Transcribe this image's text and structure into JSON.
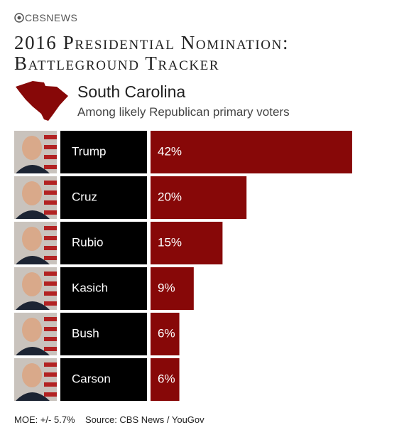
{
  "chart_data": {
    "type": "bar",
    "orientation": "horizontal",
    "logo": "CBSNEWS",
    "title": [
      "2016 Presidential Nomination:",
      "Battleground Tracker"
    ],
    "subtitle": "South Carolina",
    "description": "Among likely Republican primary voters",
    "categories": [
      "Trump",
      "Cruz",
      "Rubio",
      "Kasich",
      "Bush",
      "Carson"
    ],
    "values": [
      42,
      20,
      15,
      9,
      6,
      6
    ],
    "value_labels": [
      "42%",
      "20%",
      "15%",
      "9%",
      "6%",
      "6%"
    ],
    "color": "#870808",
    "notes": [
      "MOE: +/- 5.7%",
      "Source: CBS News / YouGov"
    ]
  }
}
